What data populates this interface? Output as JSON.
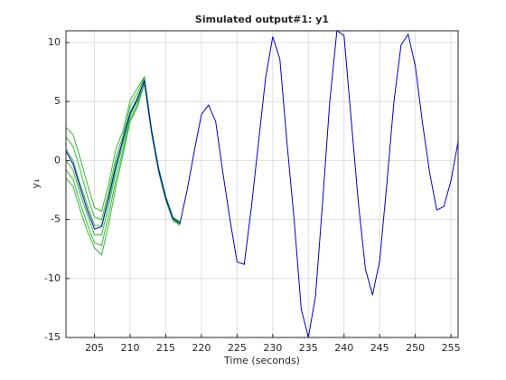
{
  "chart_data": {
    "type": "line",
    "title": "Simulated output#1: y1",
    "xlabel": "Time (seconds)",
    "ylabel": "y₁",
    "xlim": [
      201,
      256
    ],
    "xticks": [
      205,
      210,
      215,
      220,
      225,
      230,
      235,
      240,
      245,
      250,
      255
    ],
    "ylim": [
      -15,
      11
    ],
    "yticks": [
      -15,
      -10,
      -5,
      0,
      5,
      10
    ],
    "grid": true,
    "series": [
      {
        "color": "#33bb33",
        "x": [
          201,
          202,
          203,
          204,
          205,
          206,
          207,
          208,
          209,
          210,
          211,
          212,
          213,
          214,
          215,
          216,
          217
        ],
        "values": [
          2.8,
          2.2,
          0.2,
          -2.0,
          -4.0,
          -4.3,
          -2.0,
          1.0,
          2.5,
          5.1,
          6.1,
          7.1,
          2.7,
          -0.6,
          -3.0,
          -4.8,
          -5.2
        ]
      },
      {
        "color": "#33bb33",
        "x": [
          201,
          202,
          203,
          204,
          205,
          206,
          207,
          208,
          209,
          210,
          211,
          212,
          213,
          214,
          215,
          216,
          217
        ],
        "values": [
          2.0,
          1.2,
          -0.8,
          -3.0,
          -4.8,
          -5.0,
          -2.6,
          0.2,
          2.1,
          4.6,
          5.7,
          7.0,
          2.6,
          -0.7,
          -3.1,
          -4.9,
          -5.3
        ]
      },
      {
        "color": "#33bb33",
        "x": [
          201,
          202,
          203,
          204,
          205,
          206,
          207,
          208,
          209,
          210,
          211,
          212,
          213,
          214,
          215,
          216,
          217
        ],
        "values": [
          1.0,
          0.0,
          -2.0,
          -3.8,
          -5.5,
          -5.5,
          -3.0,
          -0.3,
          1.8,
          4.1,
          5.3,
          6.8,
          2.5,
          -0.8,
          -3.2,
          -4.9,
          -5.3
        ]
      },
      {
        "color": "#33bb33",
        "x": [
          201,
          202,
          203,
          204,
          205,
          206,
          207,
          208,
          209,
          210,
          211,
          212,
          213,
          214,
          215,
          216,
          217
        ],
        "values": [
          0.0,
          -0.8,
          -2.8,
          -4.6,
          -6.3,
          -6.3,
          -3.8,
          -0.9,
          1.4,
          3.8,
          5.0,
          6.7,
          2.4,
          -0.9,
          -3.3,
          -5.0,
          -5.4
        ]
      },
      {
        "color": "#33bb33",
        "x": [
          201,
          202,
          203,
          204,
          205,
          206,
          207,
          208,
          209,
          210,
          211,
          212,
          213,
          214,
          215,
          216,
          217
        ],
        "values": [
          -0.8,
          -1.6,
          -3.6,
          -5.4,
          -7.0,
          -7.2,
          -4.6,
          -1.6,
          0.9,
          3.5,
          4.7,
          6.6,
          2.4,
          -0.9,
          -3.3,
          -5.0,
          -5.4
        ]
      },
      {
        "color": "#33bb33",
        "x": [
          201,
          202,
          203,
          204,
          205,
          206,
          207,
          208,
          209,
          210,
          211,
          212,
          213,
          214,
          215,
          216,
          217
        ],
        "values": [
          -1.5,
          -2.2,
          -4.2,
          -6.0,
          -7.4,
          -8.0,
          -5.4,
          -2.2,
          0.5,
          3.3,
          4.5,
          6.5,
          2.3,
          -1.0,
          -3.4,
          -5.1,
          -5.5
        ]
      },
      {
        "color": "#0000cc",
        "x": [
          201,
          202,
          203,
          204,
          205,
          206,
          207,
          208,
          209,
          210,
          211,
          212,
          213,
          214,
          215,
          216,
          217,
          218,
          219,
          220,
          221,
          222,
          223,
          224,
          225,
          226,
          227,
          228,
          229,
          230,
          231,
          232,
          233,
          234,
          235,
          236,
          237,
          238,
          239,
          240,
          241,
          242,
          243,
          244,
          245,
          246,
          247,
          248,
          249,
          250,
          251,
          252,
          253,
          254,
          255,
          256
        ],
        "values": [
          0.8,
          -0.3,
          -2.3,
          -4.2,
          -5.8,
          -5.6,
          -3.2,
          -0.5,
          1.8,
          4.0,
          5.2,
          6.8,
          2.5,
          -0.8,
          -3.2,
          -4.9,
          -5.3,
          -2.5,
          0.8,
          3.9,
          4.7,
          3.3,
          -1.0,
          -5.0,
          -8.6,
          -8.8,
          -4.0,
          1.5,
          7.0,
          10.5,
          8.6,
          1.5,
          -5.0,
          -12.6,
          -15.0,
          -11.5,
          -3.5,
          5.0,
          11.0,
          10.6,
          3.5,
          -3.5,
          -9.2,
          -11.4,
          -8.5,
          -2.0,
          5.0,
          9.8,
          10.7,
          8.0,
          3.2,
          -1.0,
          -4.2,
          -3.9,
          -1.7,
          1.6
        ]
      }
    ]
  }
}
